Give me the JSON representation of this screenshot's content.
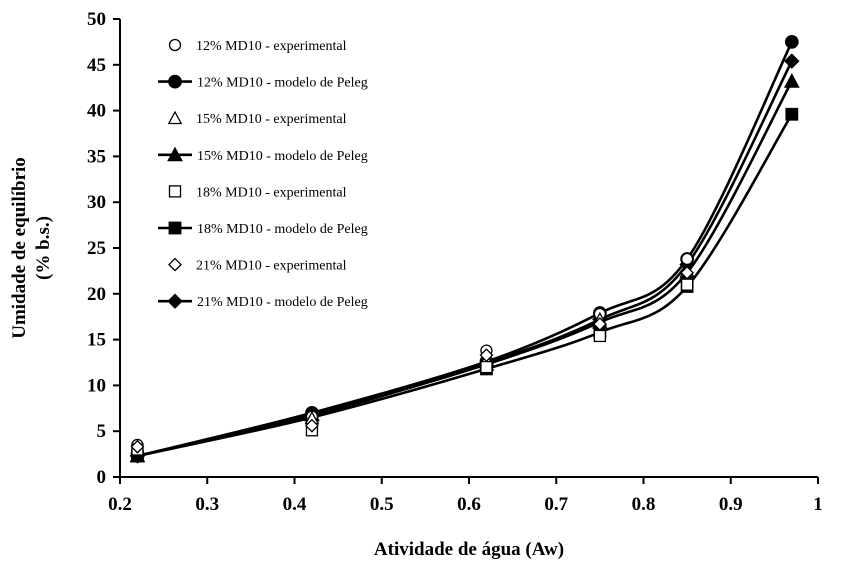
{
  "chart_data": {
    "type": "scatter",
    "title": "",
    "xlabel": "Atividade de água (Aw)",
    "ylabel_lines": [
      "Umidade de equilíbrio",
      "(% b.s.)"
    ],
    "xlim": [
      0.2,
      1.0
    ],
    "ylim": [
      0,
      50
    ],
    "x_ticks": [
      0.2,
      0.3,
      0.4,
      0.5,
      0.6,
      0.7,
      0.8,
      0.9,
      1.0
    ],
    "x_tick_labels": [
      "0.2",
      "0.3",
      "0.4",
      "0.5",
      "0.6",
      "0.7",
      "0.8",
      "0.9",
      "1"
    ],
    "y_ticks": [
      0,
      5,
      10,
      15,
      20,
      25,
      30,
      35,
      40,
      45,
      50
    ],
    "y_tick_labels": [
      "0",
      "5",
      "10",
      "15",
      "20",
      "25",
      "30",
      "35",
      "40",
      "45",
      "50"
    ],
    "grid": false,
    "legend_position": "top-left",
    "color": "#000000",
    "series": [
      {
        "name": "12% MD10 - experimental",
        "kind": "points",
        "marker": "circle-open",
        "x": [
          0.22,
          0.42,
          0.62,
          0.75,
          0.85
        ],
        "y": [
          3.5,
          6.6,
          13.8,
          17.8,
          23.8
        ]
      },
      {
        "name": "12% MD10 - modelo de Peleg",
        "kind": "line",
        "marker": "circle-filled",
        "x": [
          0.22,
          0.42,
          0.62,
          0.75,
          0.85,
          0.97
        ],
        "y": [
          2.3,
          7.0,
          12.6,
          17.9,
          23.8,
          47.5
        ]
      },
      {
        "name": "15% MD10 - experimental",
        "kind": "points",
        "marker": "triangle-open",
        "x": [
          0.22,
          0.42,
          0.62,
          0.75,
          0.85
        ],
        "y": [
          3.2,
          6.4,
          12.8,
          17.2,
          22.5
        ]
      },
      {
        "name": "15% MD10 - modelo de Peleg",
        "kind": "line",
        "marker": "triangle-filled",
        "x": [
          0.22,
          0.42,
          0.62,
          0.75,
          0.85,
          0.97
        ],
        "y": [
          2.3,
          6.8,
          12.3,
          16.9,
          22.3,
          43.2
        ]
      },
      {
        "name": "18% MD10 - experimental",
        "kind": "points",
        "marker": "square-open",
        "x": [
          0.22,
          0.42,
          0.62,
          0.75,
          0.85
        ],
        "y": [
          3.0,
          5.1,
          12.0,
          15.4,
          21.0
        ]
      },
      {
        "name": "18% MD10 - modelo de Peleg",
        "kind": "line",
        "marker": "square-filled",
        "x": [
          0.22,
          0.42,
          0.62,
          0.75,
          0.85,
          0.97
        ],
        "y": [
          2.3,
          6.5,
          11.8,
          15.8,
          20.8,
          39.6
        ]
      },
      {
        "name": "21% MD10 - experimental",
        "kind": "points",
        "marker": "diamond-open",
        "x": [
          0.22,
          0.42,
          0.62,
          0.75,
          0.85
        ],
        "y": [
          3.3,
          5.6,
          13.3,
          16.7,
          22.3
        ]
      },
      {
        "name": "21% MD10 - modelo de Peleg",
        "kind": "line",
        "marker": "diamond-filled",
        "x": [
          0.22,
          0.42,
          0.62,
          0.75,
          0.85,
          0.97
        ],
        "y": [
          2.3,
          6.7,
          12.4,
          17.2,
          23.2,
          45.4
        ]
      }
    ]
  }
}
